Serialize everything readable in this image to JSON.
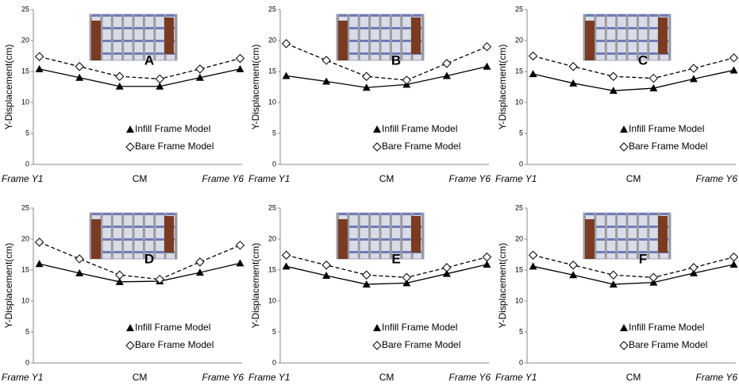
{
  "chart_data": [
    {
      "type": "line",
      "panel_label": "A",
      "ylabel": "Y-Displacement(cm)",
      "x": [
        1,
        2,
        3,
        4,
        5,
        6
      ],
      "xlim": [
        0.85,
        6.05
      ],
      "xticks": [
        {
          "value": 0.85,
          "label": "Frame Y1"
        },
        {
          "value": 3.5,
          "label": "CM"
        },
        {
          "value": 6.05,
          "label": "Frame Y6"
        }
      ],
      "ylim": [
        0,
        25
      ],
      "yticks": [
        0,
        5,
        10,
        15,
        20,
        25
      ],
      "series": [
        {
          "name": "Infill Frame Model",
          "color": "#000000",
          "marker": "triangle",
          "linestyle": "solid",
          "values": [
            15.4,
            14.0,
            12.6,
            12.6,
            14.0,
            15.4
          ]
        },
        {
          "name": "Bare Frame Model",
          "color": "#000000",
          "marker": "diamond",
          "linestyle": "dashed",
          "values": [
            17.4,
            15.8,
            14.2,
            13.8,
            15.4,
            17.1
          ]
        }
      ]
    },
    {
      "type": "line",
      "panel_label": "B",
      "ylabel": "Y-Displacement(cm)",
      "x": [
        1,
        2,
        3,
        4,
        5,
        6
      ],
      "xlim": [
        0.85,
        6.05
      ],
      "xticks": [
        {
          "value": 0.85,
          "label": "Frame Y1"
        },
        {
          "value": 3.5,
          "label": "CM"
        },
        {
          "value": 6.05,
          "label": "Frame Y6"
        }
      ],
      "ylim": [
        0,
        25
      ],
      "yticks": [
        0,
        5,
        10,
        15,
        20,
        25
      ],
      "series": [
        {
          "name": "Infill Frame Model",
          "color": "#000000",
          "marker": "triangle",
          "linestyle": "solid",
          "values": [
            14.3,
            13.4,
            12.4,
            12.9,
            14.3,
            15.8
          ]
        },
        {
          "name": "Bare Frame Model",
          "color": "#000000",
          "marker": "diamond",
          "linestyle": "dashed",
          "values": [
            19.5,
            16.8,
            14.2,
            13.6,
            16.3,
            19.0
          ]
        }
      ]
    },
    {
      "type": "line",
      "panel_label": "C",
      "ylabel": "Y-Displacement(cm)",
      "x": [
        1,
        2,
        3,
        4,
        5,
        6
      ],
      "xlim": [
        0.85,
        6.05
      ],
      "xticks": [
        {
          "value": 0.85,
          "label": "Frame Y1"
        },
        {
          "value": 3.5,
          "label": "CM"
        },
        {
          "value": 6.05,
          "label": "Frame Y6"
        }
      ],
      "ylim": [
        0,
        25
      ],
      "yticks": [
        0,
        5,
        10,
        15,
        20,
        25
      ],
      "series": [
        {
          "name": "Infill Frame Model",
          "color": "#000000",
          "marker": "triangle",
          "linestyle": "solid",
          "values": [
            14.6,
            13.1,
            11.9,
            12.3,
            13.8,
            15.2
          ]
        },
        {
          "name": "Bare Frame Model",
          "color": "#000000",
          "marker": "diamond",
          "linestyle": "dashed",
          "values": [
            17.5,
            15.8,
            14.2,
            13.9,
            15.5,
            17.2
          ]
        }
      ]
    },
    {
      "type": "line",
      "panel_label": "D",
      "ylabel": "Y-Displacement(cm)",
      "x": [
        1,
        2,
        3,
        4,
        5,
        6
      ],
      "xlim": [
        0.85,
        6.05
      ],
      "xticks": [
        {
          "value": 0.85,
          "label": "Frame Y1"
        },
        {
          "value": 3.5,
          "label": "CM"
        },
        {
          "value": 6.05,
          "label": "Frame Y6"
        }
      ],
      "ylim": [
        0,
        25
      ],
      "yticks": [
        0,
        5,
        10,
        15,
        20,
        25
      ],
      "series": [
        {
          "name": "Infill Frame Model",
          "color": "#000000",
          "marker": "triangle",
          "linestyle": "solid",
          "values": [
            16.0,
            14.5,
            13.1,
            13.2,
            14.6,
            16.1
          ]
        },
        {
          "name": "Bare Frame Model",
          "color": "#000000",
          "marker": "diamond",
          "linestyle": "dashed",
          "values": [
            19.5,
            16.8,
            14.2,
            13.5,
            16.3,
            19.0
          ]
        }
      ]
    },
    {
      "type": "line",
      "panel_label": "E",
      "ylabel": "Y-Displacement(cm)",
      "x": [
        1,
        2,
        3,
        4,
        5,
        6
      ],
      "xlim": [
        0.85,
        6.05
      ],
      "xticks": [
        {
          "value": 0.85,
          "label": "Frame Y1"
        },
        {
          "value": 3.5,
          "label": "CM"
        },
        {
          "value": 6.05,
          "label": "Frame Y6"
        }
      ],
      "ylim": [
        0,
        25
      ],
      "yticks": [
        0,
        5,
        10,
        15,
        20,
        25
      ],
      "series": [
        {
          "name": "Infill Frame Model",
          "color": "#000000",
          "marker": "triangle",
          "linestyle": "solid",
          "values": [
            15.6,
            14.1,
            12.7,
            12.9,
            14.4,
            15.9
          ]
        },
        {
          "name": "Bare Frame Model",
          "color": "#000000",
          "marker": "diamond",
          "linestyle": "dashed",
          "values": [
            17.4,
            15.8,
            14.2,
            13.8,
            15.4,
            17.1
          ]
        }
      ]
    },
    {
      "type": "line",
      "panel_label": "F",
      "ylabel": "Y-Displacement(cm)",
      "x": [
        1,
        2,
        3,
        4,
        5,
        6
      ],
      "xlim": [
        0.85,
        6.05
      ],
      "xticks": [
        {
          "value": 0.85,
          "label": "Frame Y1"
        },
        {
          "value": 3.5,
          "label": "CM"
        },
        {
          "value": 6.05,
          "label": "Frame Y6"
        }
      ],
      "ylim": [
        0,
        25
      ],
      "yticks": [
        0,
        5,
        10,
        15,
        20,
        25
      ],
      "series": [
        {
          "name": "Infill Frame Model",
          "color": "#000000",
          "marker": "triangle",
          "linestyle": "solid",
          "values": [
            15.6,
            14.2,
            12.7,
            13.0,
            14.5,
            15.9
          ]
        },
        {
          "name": "Bare Frame Model",
          "color": "#000000",
          "marker": "diamond",
          "linestyle": "dashed",
          "values": [
            17.4,
            15.8,
            14.2,
            13.8,
            15.4,
            17.1
          ]
        }
      ]
    }
  ]
}
